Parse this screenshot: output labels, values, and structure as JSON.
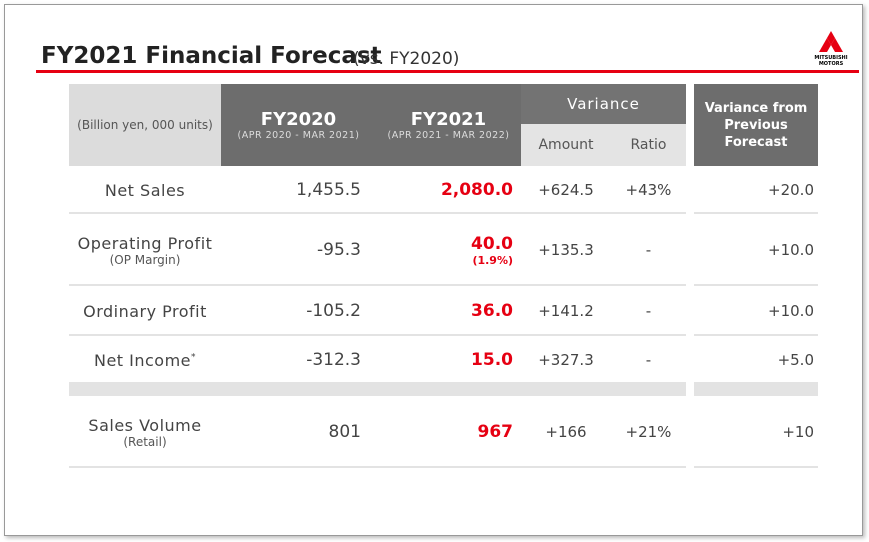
{
  "header": {
    "title": "FY2021 Financial Forecast",
    "subtitle": "(vs. FY2020)",
    "logo": [
      "MITSUBISHI",
      "MOTORS"
    ]
  },
  "table": {
    "unit_note": "(Billion yen, 000 units)",
    "columns": [
      {
        "label": "FY2020",
        "period": "(APR 2020 - MAR 2021)"
      },
      {
        "label": "FY2021",
        "period": "(APR 2021 - MAR 2022)"
      }
    ],
    "variance": {
      "label": "Variance",
      "amount": "Amount",
      "ratio": "Ratio"
    },
    "variance_prev": "Variance from Previous Forecast",
    "rows": [
      {
        "label": "Net Sales",
        "fy2020": "1,455.5",
        "fy2021": "2,080.0",
        "amount": "+624.5",
        "ratio": "+43%",
        "prev": "+20.0"
      },
      {
        "label": "Operating Profit",
        "sublabel": "(OP Margin)",
        "fy2020": "-95.3",
        "fy2021": "40.0",
        "fy2021_sub": "(1.9%)",
        "amount": "+135.3",
        "ratio": "-",
        "prev": "+10.0"
      },
      {
        "label": "Ordinary Profit",
        "fy2020": "-105.2",
        "fy2021": "36.0",
        "amount": "+141.2",
        "ratio": "-",
        "prev": "+10.0"
      },
      {
        "label": "Net Income",
        "note": "*",
        "fy2020": "-312.3",
        "fy2021": "15.0",
        "amount": "+327.3",
        "ratio": "-",
        "prev": "+5.0"
      },
      {
        "label": "Sales Volume",
        "sublabel": "(Retail)",
        "fy2020": "801",
        "fy2021": "967",
        "amount": "+166",
        "ratio": "+21%",
        "prev": "+10"
      }
    ]
  }
}
